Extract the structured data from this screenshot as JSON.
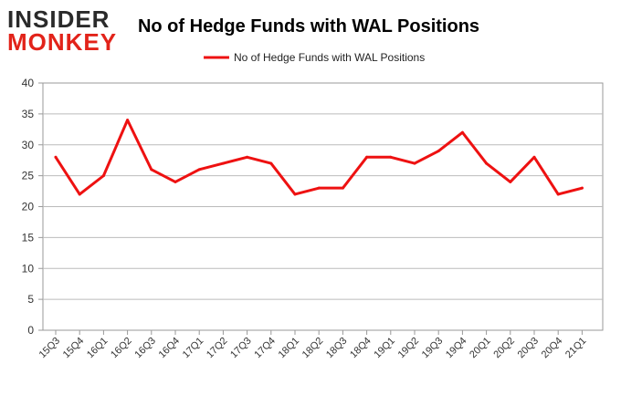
{
  "logo": {
    "line1": "INSIDER",
    "line2": "MONKEY"
  },
  "colors": {
    "series": "#ee1111",
    "logo_dark": "#2a2a2a",
    "logo_red": "#e2231a",
    "grid": "#bbbbbb",
    "frame": "#999999"
  },
  "chart_data": {
    "type": "line",
    "title": "No of Hedge Funds with WAL Positions",
    "xlabel": "",
    "ylabel": "",
    "ylim": [
      0,
      40
    ],
    "yticks": [
      0,
      5,
      10,
      15,
      20,
      25,
      30,
      35,
      40
    ],
    "grid": true,
    "legend_position": "top-center",
    "categories": [
      "15Q3",
      "15Q4",
      "16Q1",
      "16Q2",
      "16Q3",
      "16Q4",
      "17Q1",
      "17Q2",
      "17Q3",
      "17Q4",
      "18Q1",
      "18Q2",
      "18Q3",
      "18Q4",
      "19Q1",
      "19Q2",
      "19Q3",
      "19Q4",
      "20Q1",
      "20Q2",
      "20Q3",
      "20Q4",
      "21Q1"
    ],
    "series": [
      {
        "name": "No of Hedge Funds with WAL Positions",
        "values": [
          28,
          22,
          25,
          34,
          26,
          24,
          26,
          27,
          28,
          27,
          22,
          23,
          23,
          28,
          28,
          27,
          29,
          32,
          27,
          24,
          28,
          22,
          23
        ]
      }
    ]
  }
}
